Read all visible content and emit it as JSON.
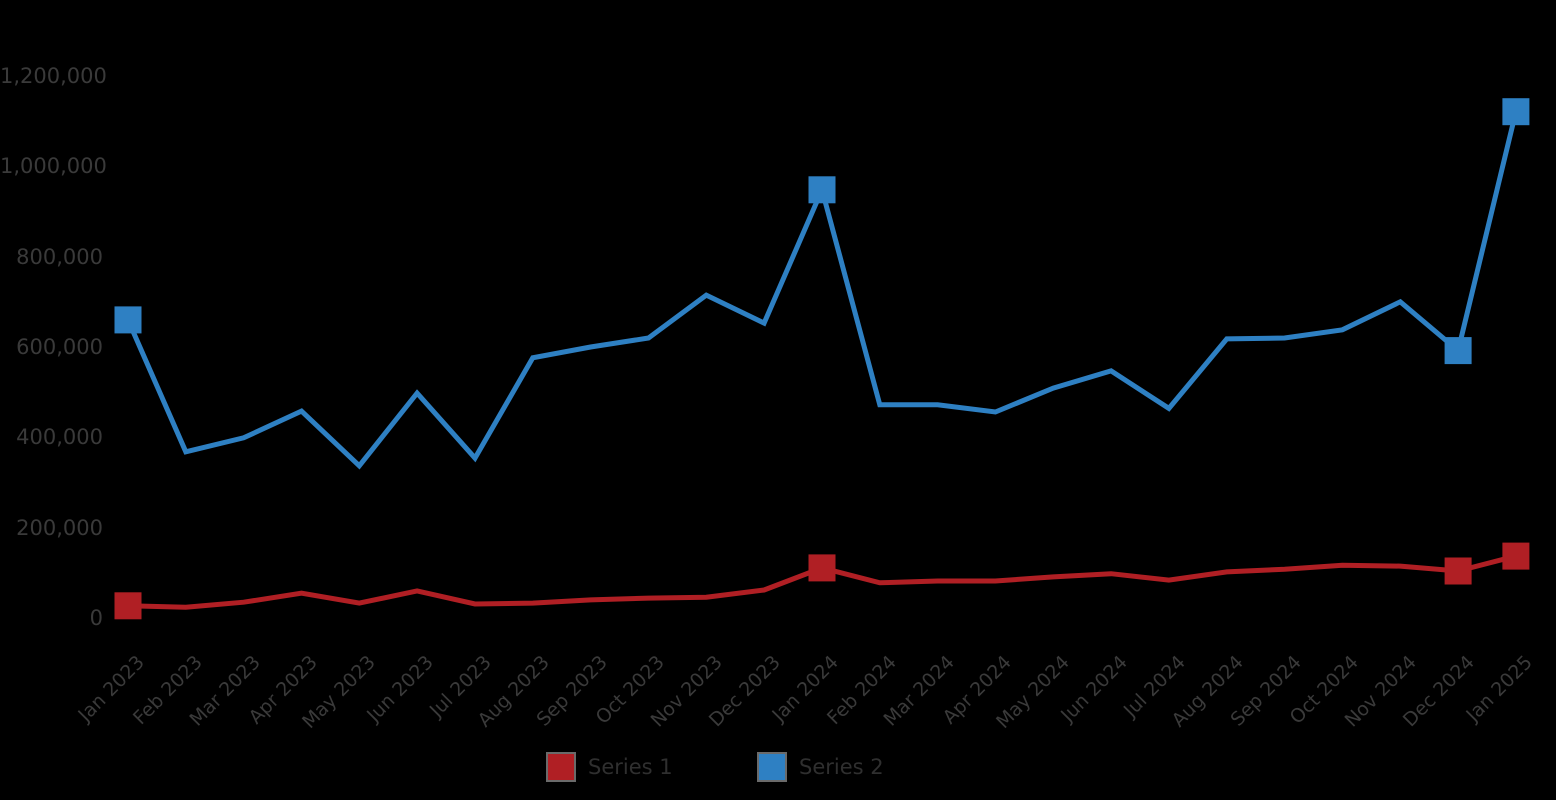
{
  "chart_data": {
    "type": "line",
    "title": "",
    "xlabel": "",
    "ylabel": "",
    "grid": false,
    "legend_position": "bottom",
    "background_color": "#000000",
    "text_color": "#3a3a3a",
    "ylim": [
      0,
      1200000
    ],
    "y_ticks": [
      0,
      200000,
      400000,
      600000,
      800000,
      1000000,
      1200000
    ],
    "y_tick_labels": [
      "0",
      "200,000",
      "400,000",
      "600,000",
      "800,000",
      "1,000,000",
      "1,200,000"
    ],
    "categories": [
      "Jan 2023",
      "Feb 2023",
      "Mar 2023",
      "Apr 2023",
      "May 2023",
      "Jun 2023",
      "Jul 2023",
      "Aug 2023",
      "Sep 2023",
      "Oct 2023",
      "Nov 2023",
      "Dec 2023",
      "Jan 2024",
      "Feb 2024",
      "Mar 2024",
      "Apr 2024",
      "May 2024",
      "Jun 2024",
      "Jul 2024",
      "Aug 2024",
      "Sep 2024",
      "Oct 2024",
      "Nov 2024",
      "Dec 2024",
      "Jan 2025"
    ],
    "series": [
      {
        "name": "Series 1",
        "color": "#b01f24",
        "marker": "square",
        "marker_indices": [
          0,
          12,
          23,
          24
        ],
        "values": [
          27000,
          24000,
          35000,
          55000,
          33000,
          60000,
          31000,
          33000,
          40000,
          44000,
          46000,
          62000,
          111000,
          78000,
          82000,
          82000,
          91000,
          98000,
          84000,
          102000,
          108000,
          117000,
          115000,
          104000,
          137000
        ]
      },
      {
        "name": "Series 2",
        "color": "#2e80c3",
        "marker": "square",
        "marker_indices": [
          0,
          12,
          23,
          24
        ],
        "values": [
          660000,
          368000,
          399000,
          458000,
          337000,
          498000,
          354000,
          576000,
          600000,
          620000,
          715000,
          653000,
          948000,
          472000,
          472000,
          456000,
          509000,
          547000,
          464000,
          618000,
          620000,
          638000,
          700000,
          592000,
          1121000
        ]
      }
    ]
  },
  "legend": {
    "items": [
      {
        "label": "Series 1",
        "color": "#b01f24"
      },
      {
        "label": "Series 2",
        "color": "#2e80c3"
      }
    ]
  }
}
